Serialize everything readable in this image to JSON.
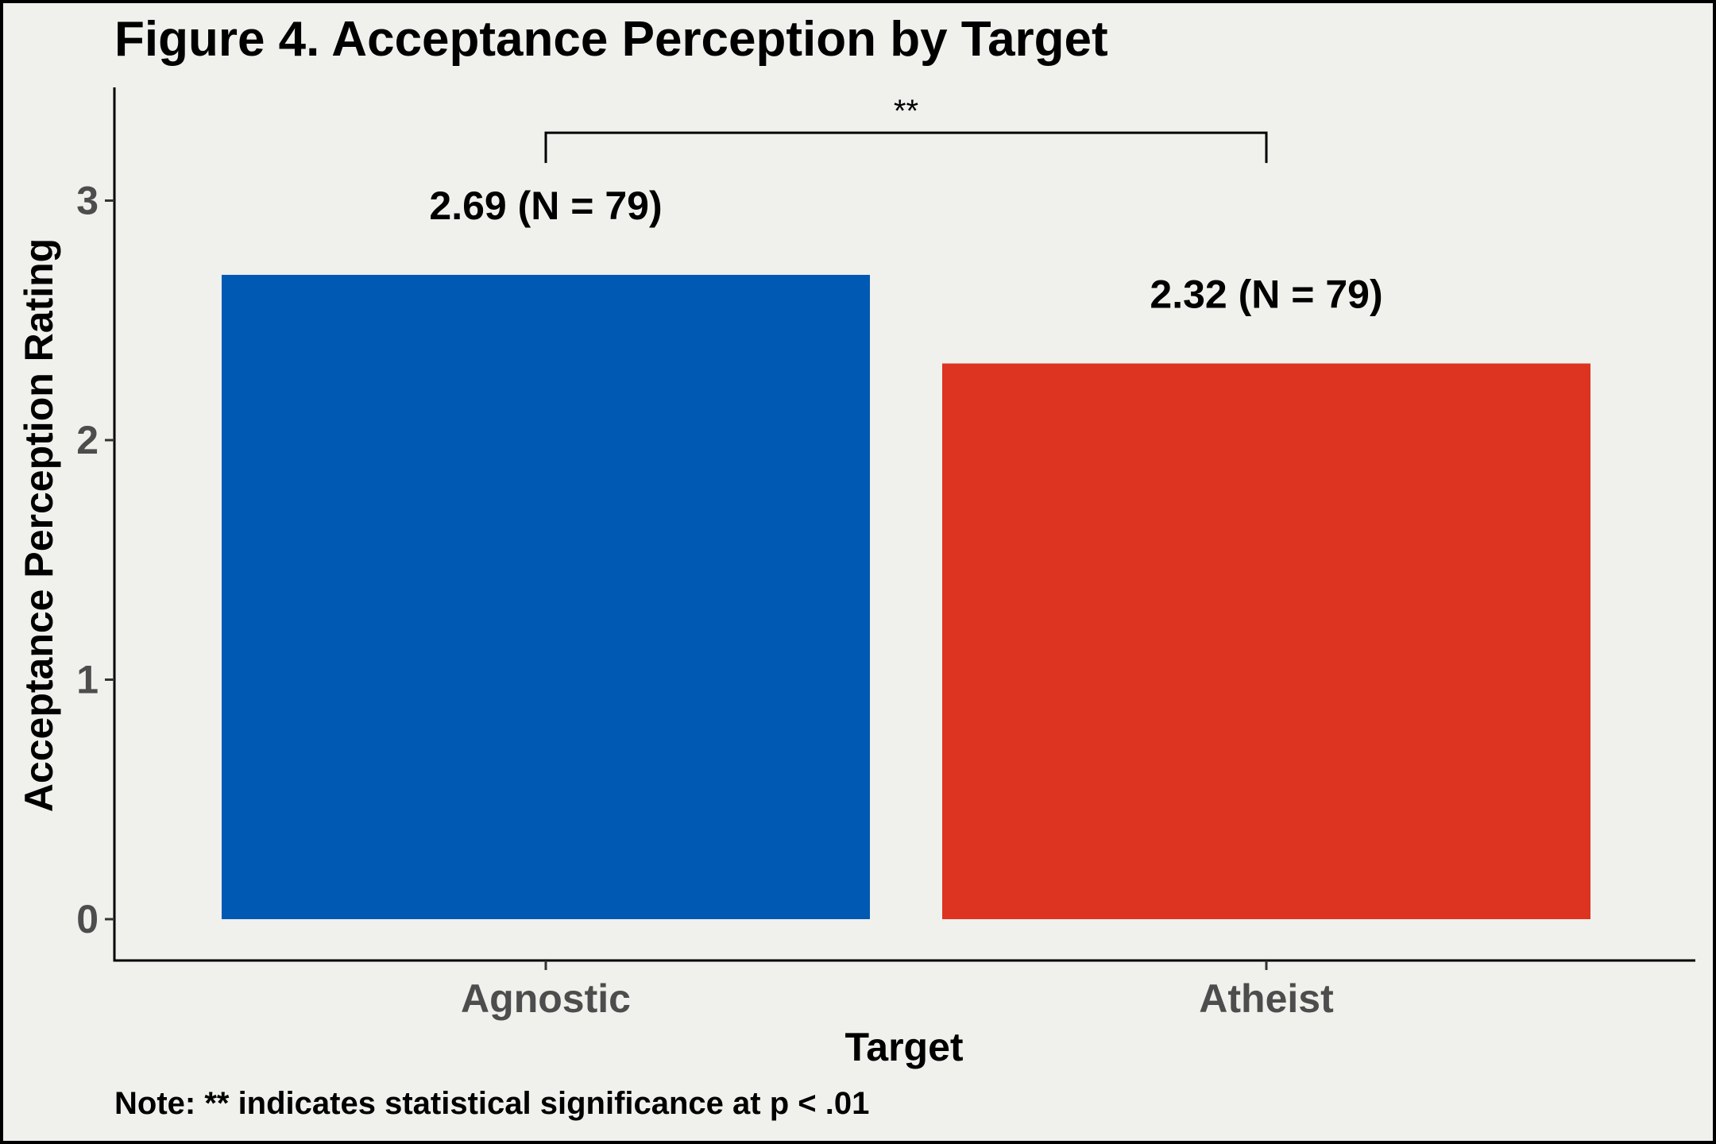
{
  "chart_data": {
    "type": "bar",
    "title": "Figure 4. Acceptance Perception by Target",
    "xlabel": "Target",
    "ylabel": "Acceptance Perception Rating",
    "categories": [
      "Agnostic",
      "Atheist"
    ],
    "values": [
      2.69,
      2.32
    ],
    "n": [
      79,
      79
    ],
    "data_labels": [
      "2.69 (N = 79)",
      "2.32 (N = 79)"
    ],
    "colors": [
      "#0059b3",
      "#dc3421"
    ],
    "ylim": [
      0,
      3.45
    ],
    "yticks": [
      0,
      1,
      2,
      3
    ],
    "ytick_labels": [
      "0",
      "1",
      "2",
      "3"
    ],
    "grid": false,
    "significance": {
      "between": [
        "Agnostic",
        "Atheist"
      ],
      "label": "**",
      "bracket_y": 3.28
    },
    "note": "Note: ** indicates statistical significance at p < .01"
  }
}
